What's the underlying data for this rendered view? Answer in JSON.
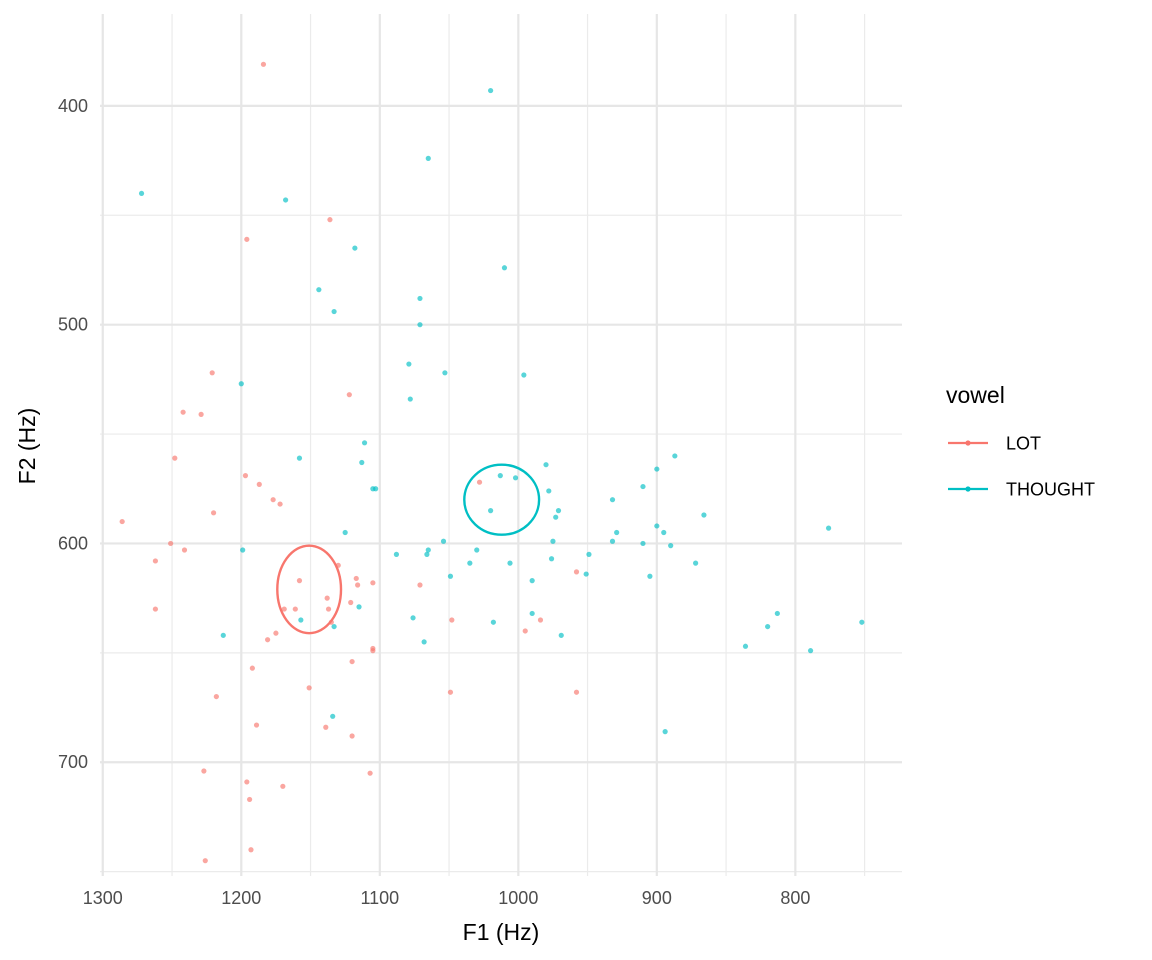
{
  "chart_data": {
    "type": "scatter",
    "xlabel": "F1 (Hz)",
    "ylabel": "F2 (Hz)",
    "x_reversed": true,
    "y_reversed": true,
    "xlim": [
      1302,
      723
    ],
    "ylim": [
      358,
      752
    ],
    "x_ticks": [
      1300,
      1200,
      1100,
      1000,
      900,
      800
    ],
    "y_ticks": [
      400,
      500,
      600,
      700
    ],
    "grid": true,
    "legend": {
      "title": "vowel",
      "position": "right"
    },
    "series": [
      {
        "name": "LOT",
        "color": "#F8766D",
        "ellipse": {
          "cx": 1151,
          "cy": 621,
          "rx": 23,
          "ry": 20
        },
        "points": [
          [
            1184,
            381
          ],
          [
            1136,
            452
          ],
          [
            1196,
            461
          ],
          [
            1221,
            522
          ],
          [
            1122,
            532
          ],
          [
            1242,
            540
          ],
          [
            1229,
            541
          ],
          [
            1248,
            561
          ],
          [
            1197,
            569
          ],
          [
            1187,
            573
          ],
          [
            1028,
            572
          ],
          [
            1177,
            580
          ],
          [
            1172,
            582
          ],
          [
            1220,
            586
          ],
          [
            1286,
            590
          ],
          [
            1251,
            600
          ],
          [
            1241,
            603
          ],
          [
            1262,
            608
          ],
          [
            1130,
            610
          ],
          [
            1158,
            617
          ],
          [
            1117,
            616
          ],
          [
            1116,
            619
          ],
          [
            1105,
            618
          ],
          [
            1071,
            619
          ],
          [
            958,
            613
          ],
          [
            1121,
            627
          ],
          [
            1138,
            625
          ],
          [
            1262,
            630
          ],
          [
            1169,
            630
          ],
          [
            1161,
            630
          ],
          [
            1137,
            630
          ],
          [
            1175,
            641
          ],
          [
            1181,
            644
          ],
          [
            1048,
            635
          ],
          [
            984,
            635
          ],
          [
            995,
            640
          ],
          [
            1135,
            636
          ],
          [
            1105,
            648
          ],
          [
            1105,
            649
          ],
          [
            1120,
            654
          ],
          [
            1192,
            657
          ],
          [
            1151,
            666
          ],
          [
            1218,
            670
          ],
          [
            958,
            668
          ],
          [
            1049,
            668
          ],
          [
            1189,
            683
          ],
          [
            1139,
            684
          ],
          [
            1120,
            688
          ],
          [
            1227,
            704
          ],
          [
            1107,
            705
          ],
          [
            1196,
            709
          ],
          [
            1170,
            711
          ],
          [
            1194,
            717
          ],
          [
            1193,
            740
          ],
          [
            1226,
            745
          ]
        ]
      },
      {
        "name": "THOUGHT",
        "color": "#00BFC4",
        "ellipse": {
          "cx": 1012,
          "cy": 580,
          "rx": 27,
          "ry": 16
        },
        "points": [
          [
            1020,
            393
          ],
          [
            1065,
            424
          ],
          [
            1272,
            440
          ],
          [
            1168,
            443
          ],
          [
            1118,
            465
          ],
          [
            1010,
            474
          ],
          [
            1144,
            484
          ],
          [
            1071,
            488
          ],
          [
            1133,
            494
          ],
          [
            1071,
            500
          ],
          [
            1079,
            518
          ],
          [
            1053,
            522
          ],
          [
            996,
            523
          ],
          [
            1200,
            527
          ],
          [
            1078,
            534
          ],
          [
            1111,
            554
          ],
          [
            1158,
            561
          ],
          [
            1113,
            563
          ],
          [
            980,
            564
          ],
          [
            1105,
            575
          ],
          [
            1103,
            575
          ],
          [
            1013,
            569
          ],
          [
            1002,
            570
          ],
          [
            900,
            566
          ],
          [
            887,
            560
          ],
          [
            910,
            574
          ],
          [
            978,
            576
          ],
          [
            932,
            580
          ],
          [
            971,
            585
          ],
          [
            1020,
            585
          ],
          [
            973,
            588
          ],
          [
            866,
            587
          ],
          [
            1125,
            595
          ],
          [
            900,
            592
          ],
          [
            929,
            595
          ],
          [
            895,
            595
          ],
          [
            1054,
            599
          ],
          [
            975,
            599
          ],
          [
            932,
            599
          ],
          [
            910,
            600
          ],
          [
            776,
            593
          ],
          [
            1199,
            603
          ],
          [
            1065,
            603
          ],
          [
            1030,
            603
          ],
          [
            890,
            601
          ],
          [
            1088,
            605
          ],
          [
            1066,
            605
          ],
          [
            949,
            605
          ],
          [
            976,
            607
          ],
          [
            1035,
            609
          ],
          [
            1006,
            609
          ],
          [
            872,
            609
          ],
          [
            1049,
            615
          ],
          [
            990,
            617
          ],
          [
            951,
            614
          ],
          [
            905,
            615
          ],
          [
            1115,
            629
          ],
          [
            1157,
            635
          ],
          [
            1076,
            634
          ],
          [
            1018,
            636
          ],
          [
            990,
            632
          ],
          [
            1133,
            638
          ],
          [
            969,
            642
          ],
          [
            1213,
            642
          ],
          [
            1068,
            645
          ],
          [
            813,
            632
          ],
          [
            820,
            638
          ],
          [
            836,
            647
          ],
          [
            752,
            636
          ],
          [
            789,
            649
          ],
          [
            1134,
            679
          ],
          [
            894,
            686
          ]
        ]
      }
    ]
  }
}
